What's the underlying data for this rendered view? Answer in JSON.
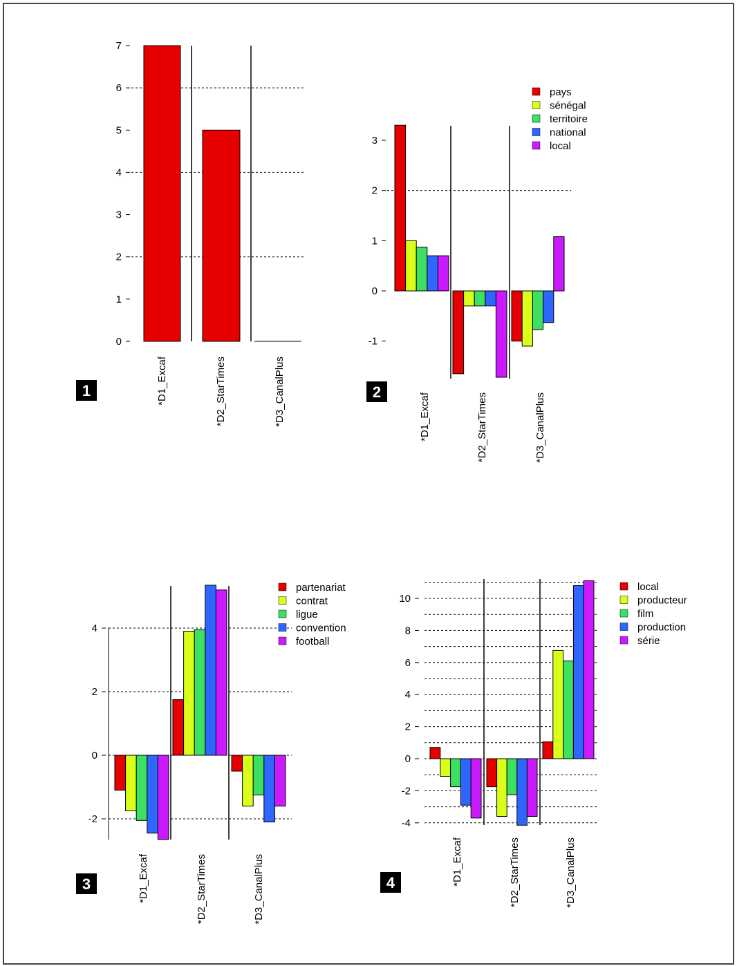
{
  "colors": {
    "red": "#e60000",
    "yellow": "#d9ff1a",
    "green": "#3de060",
    "blue": "#2f66ff",
    "magenta": "#cc1aff"
  },
  "chart_data": [
    {
      "type": "bar",
      "panel_number": "1",
      "categories": [
        "*D1_Excaf",
        "*D2_StarTimes",
        "*D3_CanalPlus"
      ],
      "series": [
        {
          "color": "red",
          "values": [
            7,
            5,
            0
          ]
        }
      ],
      "ylim": [
        0,
        7
      ],
      "yticks": [
        0,
        1,
        2,
        3,
        4,
        5,
        6,
        7
      ],
      "gridlines": [
        2,
        4,
        6
      ],
      "grid": true,
      "legend": null
    },
    {
      "type": "bar",
      "panel_number": "2",
      "categories": [
        "*D1_Excaf",
        "*D2_StarTimes",
        "*D3_CanalPlus"
      ],
      "series": [
        {
          "name": "pays",
          "color": "red",
          "values": [
            3.3,
            -1.65,
            -1.0
          ]
        },
        {
          "name": "sénégal",
          "color": "yellow",
          "values": [
            1.0,
            -0.3,
            -1.1
          ]
        },
        {
          "name": "territoire",
          "color": "green",
          "values": [
            0.87,
            -0.3,
            -0.77
          ]
        },
        {
          "name": "national",
          "color": "blue",
          "values": [
            0.7,
            -0.3,
            -0.63
          ]
        },
        {
          "name": "local",
          "color": "magenta",
          "values": [
            0.7,
            -1.72,
            1.08
          ]
        }
      ],
      "ylim": [
        -1.72,
        3.3
      ],
      "yticks": [
        -1,
        0,
        1,
        2,
        3
      ],
      "gridlines": [
        2
      ],
      "grid": true,
      "legend": "top-right"
    },
    {
      "type": "bar",
      "panel_number": "3",
      "categories": [
        "*D1_Excaf",
        "*D2_StarTimes",
        "*D3_CanalPlus"
      ],
      "series": [
        {
          "name": "partenariat",
          "color": "red",
          "values": [
            -1.1,
            1.75,
            -0.5
          ]
        },
        {
          "name": "contrat",
          "color": "yellow",
          "values": [
            -1.75,
            3.9,
            -1.6
          ]
        },
        {
          "name": "ligue",
          "color": "green",
          "values": [
            -2.05,
            3.95,
            -1.25
          ]
        },
        {
          "name": "convention",
          "color": "blue",
          "values": [
            -2.45,
            5.35,
            -2.1
          ]
        },
        {
          "name": "football",
          "color": "magenta",
          "values": [
            -2.65,
            5.2,
            -1.6
          ]
        }
      ],
      "ylim": [
        -2.65,
        5.35
      ],
      "yticks": [
        -2,
        0,
        2,
        4
      ],
      "gridlines": [
        -2,
        0,
        2,
        4
      ],
      "grid": true,
      "legend": "top-right"
    },
    {
      "type": "bar",
      "panel_number": "4",
      "categories": [
        "*D1_Excaf",
        "*D2_StarTimes",
        "*D3_CanalPlus"
      ],
      "series": [
        {
          "name": "local",
          "color": "red",
          "values": [
            0.7,
            -1.75,
            1.05
          ]
        },
        {
          "name": "producteur",
          "color": "yellow",
          "values": [
            -1.1,
            -3.6,
            6.75
          ]
        },
        {
          "name": "film",
          "color": "green",
          "values": [
            -1.75,
            -2.25,
            6.1
          ]
        },
        {
          "name": "production",
          "color": "blue",
          "values": [
            -2.9,
            -4.15,
            10.8
          ]
        },
        {
          "name": "série",
          "color": "magenta",
          "values": [
            -3.7,
            -3.6,
            11.1
          ]
        }
      ],
      "ylim": [
        -4.15,
        11.1
      ],
      "yticks": [
        -4,
        -2,
        0,
        2,
        4,
        6,
        8,
        10
      ],
      "gridlines": [
        -4,
        -3,
        -2,
        -1,
        0,
        1,
        2,
        3,
        4,
        5,
        6,
        7,
        8,
        9,
        10,
        11
      ],
      "grid": true,
      "legend": "top-right"
    }
  ]
}
